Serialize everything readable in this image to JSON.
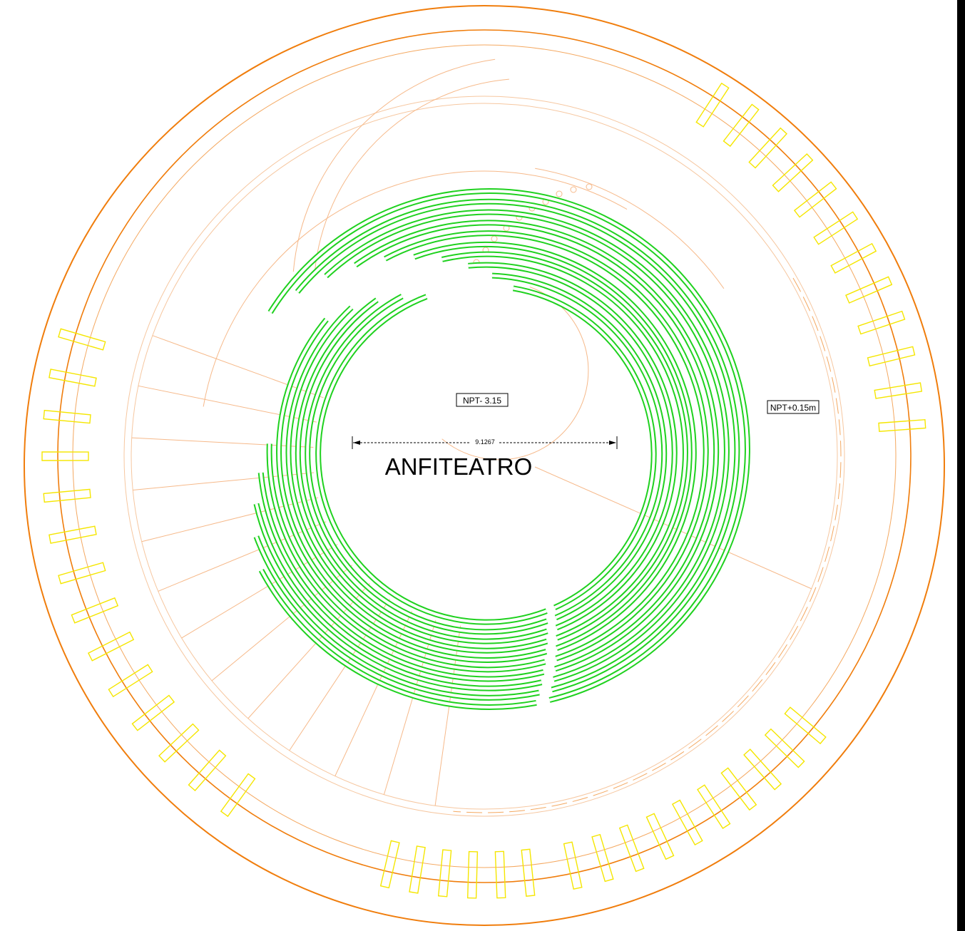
{
  "labels": {
    "level_center": "NPT- 3.15",
    "level_outer": "NPT+0.15m",
    "dimension": "9.1267",
    "title": "ANFITEATRO"
  }
}
